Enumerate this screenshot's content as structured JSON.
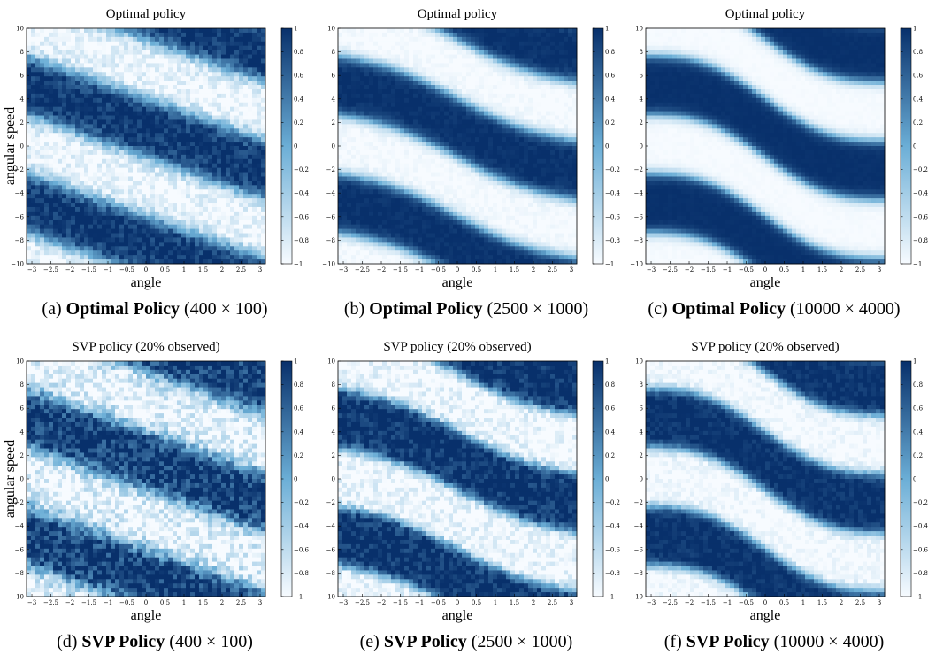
{
  "colors": {
    "low": "#f7fbff",
    "mid": "#6baed6",
    "high": "#08306b"
  },
  "chart_data": [
    {
      "type": "heatmap",
      "panel": "a",
      "title": "Optimal policy",
      "xlabel": "angle",
      "ylabel": "angular speed",
      "caption_label": "(a)",
      "caption_bold": "Optimal Policy",
      "caption_rest": "(400 × 100)",
      "x_range": [
        -3.14,
        3.14
      ],
      "y_range": [
        -10,
        10
      ],
      "colorbar_range": [
        -1,
        1
      ],
      "x_ticks": [
        "−3",
        "−2.5",
        "−2",
        "−1.5",
        "−1",
        "−0.5",
        "0",
        "0.5",
        "1",
        "1.5",
        "2",
        "2.5",
        "3"
      ],
      "y_ticks": [
        "10",
        "8",
        "6",
        "4",
        "2",
        "0",
        "−2",
        "−4",
        "−6",
        "−8",
        "−10"
      ],
      "colorbar_ticks": [
        "1",
        "0.8",
        "0.6",
        "0.4",
        "0.2",
        "0",
        "−0.2",
        "−0.4",
        "−0.6",
        "−0.8",
        "−1"
      ],
      "band_slope": -1.0,
      "band_curvature": 0.0,
      "band_offset": 0.0,
      "blur": 1.6,
      "noise": 0.55
    },
    {
      "type": "heatmap",
      "panel": "b",
      "title": "Optimal policy",
      "xlabel": "angle",
      "ylabel": "",
      "caption_label": "(b)",
      "caption_bold": "Optimal Policy",
      "caption_rest": "(2500 × 1000)",
      "x_range": [
        -3.14,
        3.14
      ],
      "y_range": [
        -10,
        10
      ],
      "colorbar_range": [
        -1,
        1
      ],
      "x_ticks": [
        "−3",
        "−2.5",
        "−2",
        "−1.5",
        "−1",
        "−0.5",
        "0",
        "0.5",
        "1",
        "1.5",
        "2",
        "2.5",
        "3"
      ],
      "y_ticks": [
        "10",
        "8",
        "6",
        "4",
        "2",
        "0",
        "−2",
        "−4",
        "−6",
        "−8",
        "−10"
      ],
      "colorbar_ticks": [
        "1",
        "0.8",
        "0.6",
        "0.4",
        "0.2",
        "0",
        "−0.2",
        "−0.4",
        "−0.6",
        "−0.8",
        "−1"
      ],
      "band_slope": -1.0,
      "band_curvature": 0.35,
      "band_offset": 0.0,
      "blur": 1.1,
      "noise": 0.15
    },
    {
      "type": "heatmap",
      "panel": "c",
      "title": "Optimal policy",
      "xlabel": "angle",
      "ylabel": "",
      "caption_label": "(c)",
      "caption_bold": "Optimal Policy",
      "caption_rest": "(10000 × 4000)",
      "x_range": [
        -3.14,
        3.14
      ],
      "y_range": [
        -10,
        10
      ],
      "colorbar_range": [
        -1,
        1
      ],
      "x_ticks": [
        "−3",
        "−2.5",
        "−2",
        "−1.5",
        "−1",
        "−0.5",
        "0",
        "0.5",
        "1",
        "1.5",
        "2",
        "2.5",
        "3"
      ],
      "y_ticks": [
        "10",
        "8",
        "6",
        "4",
        "2",
        "0",
        "−2",
        "−4",
        "−6",
        "−8",
        "−10"
      ],
      "colorbar_ticks": [
        "1",
        "0.8",
        "0.6",
        "0.4",
        "0.2",
        "0",
        "−0.2",
        "−0.4",
        "−0.6",
        "−0.8",
        "−1"
      ],
      "band_slope": -1.0,
      "band_curvature": 0.7,
      "band_offset": 0.0,
      "blur": 1.0,
      "noise": 0.05
    },
    {
      "type": "heatmap",
      "panel": "d",
      "title": "SVP policy (20% observed)",
      "xlabel": "angle",
      "ylabel": "angular speed",
      "caption_label": "(d)",
      "caption_bold": "SVP Policy",
      "caption_rest": "(400 × 100)",
      "x_range": [
        -3.14,
        3.14
      ],
      "y_range": [
        -10,
        10
      ],
      "colorbar_range": [
        -1,
        1
      ],
      "x_ticks": [
        "−3",
        "−2.5",
        "−2",
        "−1.5",
        "−1",
        "−0.5",
        "0",
        "0.5",
        "1",
        "1.5",
        "2",
        "2.5",
        "3"
      ],
      "y_ticks": [
        "10",
        "8",
        "6",
        "4",
        "2",
        "0",
        "−2",
        "−4",
        "−6",
        "−8",
        "−10"
      ],
      "colorbar_ticks": [
        "1",
        "0.8",
        "0.6",
        "0.4",
        "0.2",
        "0",
        "−0.2",
        "−0.4",
        "−0.6",
        "−0.8",
        "−1"
      ],
      "band_slope": -1.0,
      "band_curvature": 0.0,
      "band_offset": 0.0,
      "blur": 1.8,
      "noise": 0.9
    },
    {
      "type": "heatmap",
      "panel": "e",
      "title": "SVP policy (20% observed)",
      "xlabel": "angle",
      "ylabel": "",
      "caption_label": "(e)",
      "caption_bold": "SVP Policy",
      "caption_rest": "(2500 × 1000)",
      "x_range": [
        -3.14,
        3.14
      ],
      "y_range": [
        -10,
        10
      ],
      "colorbar_range": [
        -1,
        1
      ],
      "x_ticks": [
        "−3",
        "−2.5",
        "−2",
        "−1.5",
        "−1",
        "−0.5",
        "0",
        "0.5",
        "1",
        "1.5",
        "2",
        "2.5",
        "3"
      ],
      "y_ticks": [
        "10",
        "8",
        "6",
        "4",
        "2",
        "0",
        "−2",
        "−4",
        "−6",
        "−8",
        "−10"
      ],
      "colorbar_ticks": [
        "1",
        "0.8",
        "0.6",
        "0.4",
        "0.2",
        "0",
        "−0.2",
        "−0.4",
        "−0.6",
        "−0.8",
        "−1"
      ],
      "band_slope": -1.0,
      "band_curvature": 0.35,
      "band_offset": 0.0,
      "blur": 1.0,
      "noise": 0.6
    },
    {
      "type": "heatmap",
      "panel": "f",
      "title": "SVP policy (20% observed)",
      "xlabel": "angle",
      "ylabel": "",
      "caption_label": "(f)",
      "caption_bold": "SVP Policy",
      "caption_rest": "(10000 × 4000)",
      "x_range": [
        -3.14,
        3.14
      ],
      "y_range": [
        -10,
        10
      ],
      "colorbar_range": [
        -1,
        1
      ],
      "x_ticks": [
        "−3",
        "−2.5",
        "−2",
        "−1.5",
        "−1",
        "−0.5",
        "0",
        "0.5",
        "1",
        "1.5",
        "2",
        "2.5",
        "3"
      ],
      "y_ticks": [
        "10",
        "8",
        "6",
        "4",
        "2",
        "0",
        "−2",
        "−4",
        "−6",
        "−8",
        "−10"
      ],
      "colorbar_ticks": [
        "1",
        "0.8",
        "0.6",
        "0.4",
        "0.2",
        "0",
        "−0.2",
        "−0.4",
        "−0.6",
        "−0.8",
        "−1"
      ],
      "band_slope": -1.0,
      "band_curvature": 0.7,
      "band_offset": 0.0,
      "blur": 1.0,
      "noise": 0.3
    }
  ]
}
